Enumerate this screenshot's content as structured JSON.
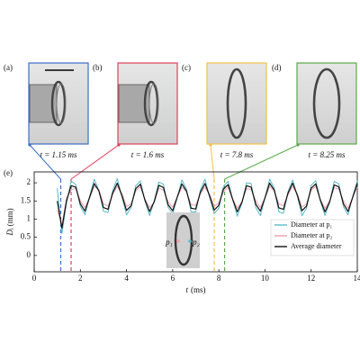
{
  "panels": [
    {
      "label": "(a)",
      "caption": "t = 1.15 ms",
      "time": 1.15,
      "color": "#3a6fc4"
    },
    {
      "label": "(b)",
      "caption": "t = 1.6 ms",
      "time": 1.6,
      "color": "#e0405a"
    },
    {
      "label": "(c)",
      "caption": "t = 7.8 ms",
      "time": 7.8,
      "color": "#f2c04a"
    },
    {
      "label": "(d)",
      "caption": "t = 8.25 ms",
      "time": 8.25,
      "color": "#5aa84a"
    }
  ],
  "chart_data": {
    "type": "line",
    "panel_label": "(e)",
    "xlabel": {
      "symbol": "t",
      "unit": "(ms)"
    },
    "ylabel": {
      "symbol": "D",
      "subscript": "i",
      "unit": "(mm)"
    },
    "inset_labels": [
      "p₁",
      "p₂"
    ],
    "xlim": [
      0,
      14
    ],
    "xticks": [
      0,
      2,
      4,
      6,
      8,
      10,
      12,
      14
    ],
    "ylim": [
      -0.45,
      2.3
    ],
    "yticks": [
      0,
      0.5,
      1,
      1.5,
      2
    ],
    "legend": "lower right",
    "x": [
      1,
      1.2,
      1.4,
      1.6,
      1.8,
      2,
      2.2,
      2.4,
      2.6,
      2.8,
      3,
      3.2,
      3.4,
      3.6,
      3.8,
      4,
      4.2,
      4.4,
      4.6,
      4.8,
      5,
      5.2,
      5.4,
      5.6,
      5.8,
      6,
      6.2,
      6.4,
      6.6,
      6.8,
      7,
      7.2,
      7.4,
      7.6,
      7.8,
      8,
      8.2,
      8.4,
      8.6,
      8.8,
      9,
      9.2,
      9.4,
      9.6,
      9.8,
      10,
      10.2,
      10.4,
      10.6,
      10.8,
      11,
      11.2,
      11.4,
      11.6,
      11.8,
      12,
      12.2,
      12.4,
      12.6,
      12.8,
      13,
      13.2,
      13.4,
      13.6,
      13.8,
      14
    ],
    "series": [
      {
        "name": "Diameter at p₁",
        "color": "#5bb8c8",
        "width": 1,
        "values": [
          1.85,
          0.6,
          1.45,
          2.05,
          1.95,
          1.35,
          1.12,
          1.62,
          2.1,
          1.8,
          1.22,
          1.18,
          1.78,
          2.12,
          1.62,
          1.12,
          1.32,
          1.92,
          2.05,
          1.5,
          1.1,
          1.5,
          2.02,
          1.96,
          1.33,
          1.14,
          1.6,
          2.08,
          1.82,
          1.2,
          1.2,
          1.8,
          2.1,
          1.6,
          1.15,
          1.3,
          1.9,
          2.04,
          1.55,
          1.08,
          1.44,
          2.0,
          1.98,
          1.32,
          1.1,
          1.58,
          2.1,
          1.85,
          1.2,
          1.16,
          1.76,
          2.08,
          1.64,
          1.1,
          1.3,
          1.93,
          2.06,
          1.5,
          1.1,
          1.46,
          2.04,
          1.97,
          1.34,
          1.12,
          1.62,
          2.06
        ]
      },
      {
        "name": "Diameter at p₂",
        "color": "#f0a0a8",
        "width": 1,
        "values": [
          1.25,
          0.85,
          1.58,
          1.8,
          1.85,
          1.5,
          1.32,
          1.58,
          1.9,
          1.82,
          1.42,
          1.36,
          1.68,
          1.9,
          1.7,
          1.35,
          1.42,
          1.78,
          1.9,
          1.55,
          1.32,
          1.46,
          1.85,
          1.8,
          1.48,
          1.33,
          1.6,
          1.88,
          1.76,
          1.4,
          1.38,
          1.7,
          1.88,
          1.68,
          1.36,
          1.44,
          1.76,
          1.88,
          1.56,
          1.3,
          1.48,
          1.84,
          1.82,
          1.5,
          1.32,
          1.57,
          1.9,
          1.78,
          1.42,
          1.37,
          1.68,
          1.9,
          1.7,
          1.33,
          1.42,
          1.8,
          1.9,
          1.54,
          1.3,
          1.5,
          1.86,
          1.83,
          1.5,
          1.3,
          1.6,
          1.88
        ]
      },
      {
        "name": "Average diameter",
        "color": "#111111",
        "width": 1.2,
        "values": [
          1.5,
          0.75,
          1.5,
          1.92,
          1.88,
          1.42,
          1.22,
          1.6,
          1.98,
          1.78,
          1.32,
          1.27,
          1.72,
          1.99,
          1.65,
          1.24,
          1.37,
          1.84,
          1.96,
          1.52,
          1.21,
          1.48,
          1.93,
          1.87,
          1.4,
          1.23,
          1.61,
          1.97,
          1.77,
          1.3,
          1.28,
          1.74,
          1.98,
          1.64,
          1.25,
          1.38,
          1.83,
          1.95,
          1.54,
          1.2,
          1.46,
          1.92,
          1.88,
          1.41,
          1.22,
          1.59,
          1.99,
          1.8,
          1.31,
          1.27,
          1.72,
          1.99,
          1.66,
          1.23,
          1.36,
          1.85,
          1.97,
          1.52,
          1.2,
          1.47,
          1.94,
          1.89,
          1.42,
          1.21,
          1.6,
          1.98
        ]
      }
    ]
  }
}
